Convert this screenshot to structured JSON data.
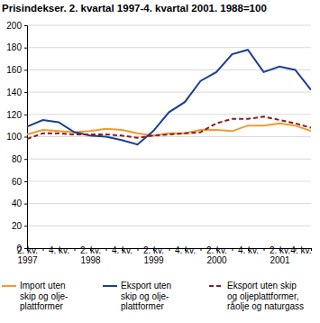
{
  "chart_data": {
    "type": "line",
    "title": "Prisindekser. 2. kvartal 1997-4. kvartal 2001. 1988=100",
    "categories": [
      "2. kv.\n1997",
      null,
      "4. kv.",
      null,
      "2. kv.\n1998",
      null,
      "4. kv.",
      null,
      "2. kv.\n1999",
      null,
      "4. kv.",
      null,
      "2. kv.\n2000",
      null,
      "4. kv.",
      null,
      "2. kv.\n2001",
      null,
      "4. kv."
    ],
    "series": [
      {
        "name": "Import uten\nskip og olje-\nplattformer",
        "color": "#f39a2e",
        "line_style": "solid",
        "values": [
          102,
          106,
          105,
          104,
          105,
          107,
          106,
          103,
          101,
          103,
          103,
          106,
          106,
          105,
          110,
          110,
          112,
          110,
          105
        ]
      },
      {
        "name": "Eksport uten\nskip og olje-\nplattformer",
        "color": "#1c3f8f",
        "line_style": "solid",
        "values": [
          109,
          115,
          113,
          104,
          101,
          100,
          97,
          93,
          105,
          122,
          131,
          150,
          158,
          174,
          178,
          158,
          163,
          160,
          142
        ]
      },
      {
        "name": "Eksport uten skip\nog oljeplattformer,\nråolje og naturgass",
        "color": "#8b1c1c",
        "line_style": "dashed",
        "values": [
          98,
          103,
          103,
          102,
          102,
          102,
          101,
          99,
          101,
          102,
          103,
          104,
          112,
          116,
          116,
          118,
          115,
          112,
          108
        ]
      }
    ],
    "ylim": [
      0,
      200
    ],
    "yticks": [
      0,
      20,
      40,
      60,
      80,
      100,
      120,
      140,
      160,
      180,
      200
    ],
    "grid": true,
    "legend": "bottom"
  }
}
